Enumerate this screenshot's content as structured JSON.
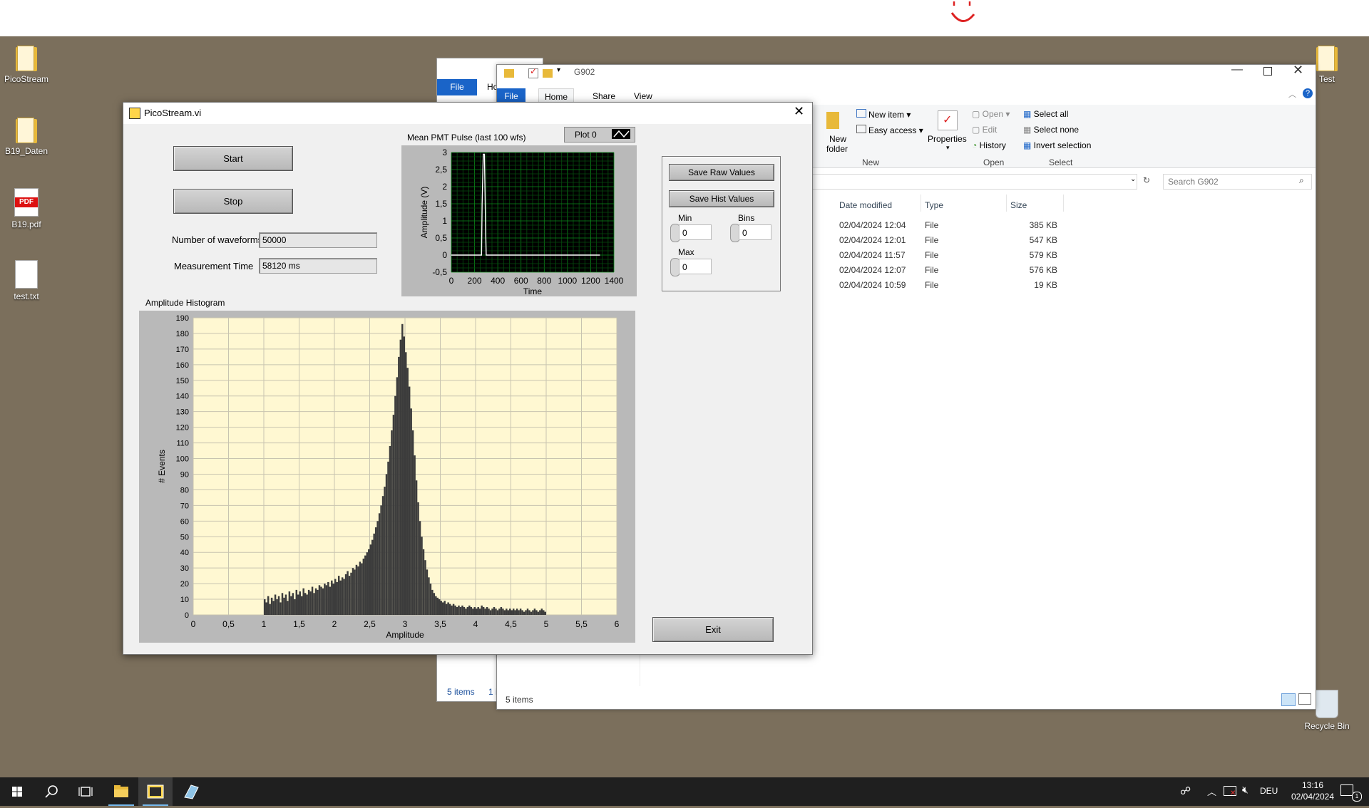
{
  "desktop": {
    "icons_left": [
      {
        "label": "PicoStream",
        "kind": "folder"
      },
      {
        "label": "B19_Daten",
        "kind": "folder"
      },
      {
        "label": "B19.pdf",
        "kind": "pdf",
        "badge": "PDF"
      },
      {
        "label": "test.txt",
        "kind": "doc"
      }
    ],
    "icon_right_top": "Test",
    "recycle_bin": "Recycle Bin"
  },
  "explorer_back": {
    "file_tab": "File",
    "home_tab_partial": "Ho",
    "status_items": "5 items",
    "status_partial": "1 i"
  },
  "explorer": {
    "title": "G902",
    "tabs": [
      "File",
      "Home",
      "Share",
      "View"
    ],
    "ribbon": {
      "new_folder_line1": "New",
      "new_folder_line2": "folder",
      "new_item": "New item",
      "easy_access": "Easy access",
      "group_new": "New",
      "properties": "Properties",
      "open": "Open",
      "edit": "Edit",
      "history": "History",
      "group_open": "Open",
      "select_all": "Select all",
      "select_none": "Select none",
      "invert_selection": "Invert selection",
      "group_select": "Select"
    },
    "search_placeholder": "Search G902",
    "columns": [
      "Date modified",
      "Type",
      "Size"
    ],
    "rows": [
      {
        "date": "02/04/2024 12:04",
        "type": "File",
        "size": "385 KB"
      },
      {
        "date": "02/04/2024 12:01",
        "type": "File",
        "size": "547 KB"
      },
      {
        "date": "02/04/2024 11:57",
        "type": "File",
        "size": "579 KB"
      },
      {
        "date": "02/04/2024 12:07",
        "type": "File",
        "size": "576 KB"
      },
      {
        "date": "02/04/2024 10:59",
        "type": "File",
        "size": "19 KB"
      }
    ],
    "status_items": "5 items"
  },
  "lv": {
    "title": "PicoStream.vi",
    "start_label": "Start",
    "stop_label": "Stop",
    "num_waveforms_label": "Number of waveforms",
    "num_waveforms_value": "50000",
    "meas_time_label": "Measurement Time",
    "meas_time_value": "58120 ms",
    "save_raw_label": "Save Raw Values",
    "save_hist_label": "Save Hist Values",
    "min_label": "Min",
    "min_value": "0",
    "bins_label": "Bins",
    "bins_value": "0",
    "max_label": "Max",
    "max_value": "0",
    "exit_label": "Exit",
    "histogram_caption": "Amplitude Histogram",
    "pulse_caption": "Mean PMT Pulse (last 100 wfs)",
    "plot_legend": "Plot 0"
  },
  "taskbar": {
    "language": "DEU",
    "time": "13:16",
    "date": "02/04/2024",
    "notification_count": "1"
  },
  "chart_data": [
    {
      "type": "line",
      "title": "Mean PMT Pulse (last 100 wfs)",
      "xlabel": "Time",
      "ylabel": "Amplitude (V)",
      "xlim": [
        0,
        1400
      ],
      "ylim": [
        -0.5,
        3
      ],
      "xticks": [
        "0",
        "200",
        "400",
        "600",
        "800",
        "1000",
        "1200",
        "1400"
      ],
      "yticks": [
        "3",
        "2,5",
        "2",
        "1,5",
        "1",
        "0,5",
        "0",
        "-0,5"
      ],
      "legend": "Plot 0",
      "x": [
        0,
        260,
        265,
        275,
        280,
        285,
        295,
        300,
        305,
        1280
      ],
      "y": [
        0,
        0,
        1.5,
        2.95,
        2.95,
        2.95,
        0.8,
        0,
        0,
        0
      ]
    },
    {
      "type": "bar",
      "title": "Amplitude Histogram",
      "xlabel": "Amplitude",
      "ylabel": "# Events",
      "xlim": [
        0,
        6
      ],
      "ylim": [
        0,
        190
      ],
      "xticks": [
        "0",
        "0,5",
        "1",
        "1,5",
        "2",
        "2,5",
        "3",
        "3,5",
        "4",
        "4,5",
        "5",
        "5,5",
        "6"
      ],
      "yticks": [
        "190",
        "180",
        "170",
        "160",
        "150",
        "140",
        "130",
        "120",
        "110",
        "100",
        "90",
        "80",
        "70",
        "60",
        "50",
        "40",
        "30",
        "20",
        "10",
        "0"
      ],
      "bin_start": 1.0,
      "bin_width": 0.025,
      "values": [
        10,
        8,
        12,
        7,
        11,
        9,
        13,
        10,
        12,
        8,
        14,
        11,
        13,
        9,
        15,
        12,
        14,
        10,
        16,
        13,
        15,
        12,
        17,
        14,
        13,
        16,
        15,
        18,
        14,
        17,
        16,
        19,
        18,
        17,
        20,
        19,
        21,
        18,
        22,
        20,
        23,
        21,
        25,
        22,
        24,
        23,
        26,
        28,
        25,
        27,
        30,
        29,
        32,
        31,
        34,
        33,
        36,
        38,
        40,
        42,
        45,
        48,
        52,
        56,
        60,
        65,
        70,
        76,
        82,
        90,
        98,
        108,
        118,
        128,
        140,
        152,
        165,
        176,
        186,
        178,
        168,
        158,
        146,
        132,
        118,
        102,
        86,
        72,
        60,
        50,
        42,
        35,
        29,
        24,
        20,
        16,
        14,
        12,
        11,
        10,
        9,
        8,
        9,
        7,
        8,
        7,
        6,
        7,
        6,
        5,
        6,
        5,
        6,
        5,
        4,
        5,
        6,
        5,
        4,
        5,
        4,
        5,
        4,
        6,
        5,
        4,
        5,
        4,
        3,
        4,
        5,
        4,
        3,
        4,
        5,
        4,
        3,
        4,
        3,
        4,
        3,
        4,
        3,
        4,
        3,
        4,
        3,
        2,
        3,
        4,
        3,
        2,
        3,
        4,
        3,
        2,
        3,
        4,
        3,
        2
      ]
    }
  ]
}
